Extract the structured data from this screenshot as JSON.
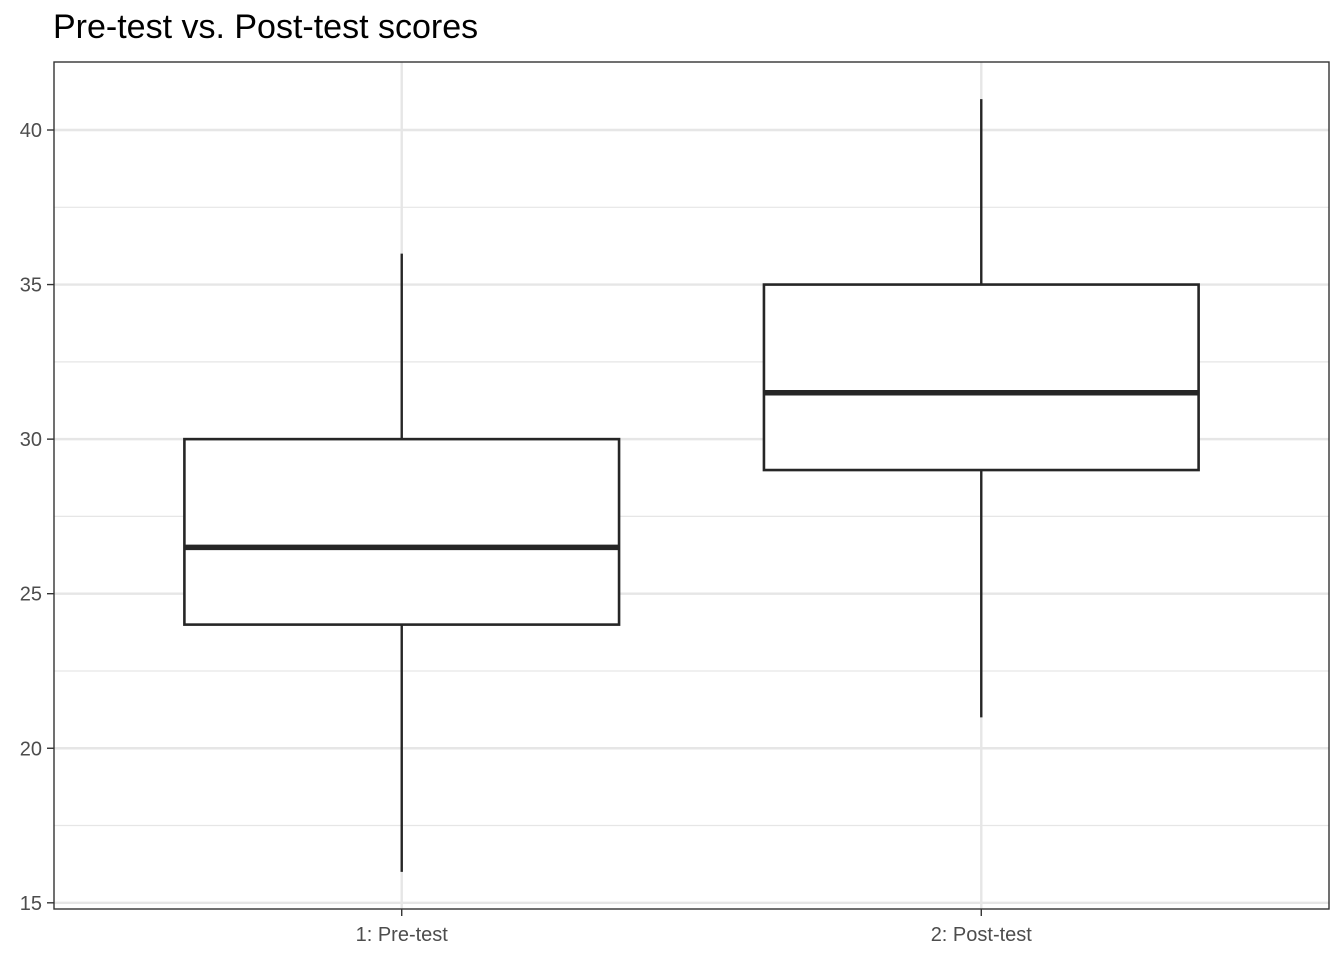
{
  "chart_data": {
    "type": "box",
    "title": "Pre-test vs. Post-test scores",
    "xlabel": "",
    "ylabel": "",
    "categories": [
      "1: Pre-test",
      "2: Post-test"
    ],
    "boxes": [
      {
        "category": "1: Pre-test",
        "whisker_low": 16,
        "q1": 24,
        "median": 26.5,
        "q3": 30,
        "whisker_high": 36
      },
      {
        "category": "2: Post-test",
        "whisker_low": 21,
        "q1": 29,
        "median": 31.5,
        "q3": 35,
        "whisker_high": 41
      }
    ],
    "y_ticks": [
      15,
      20,
      25,
      30,
      35,
      40
    ],
    "y_minor_ticks": [
      17.5,
      22.5,
      27.5,
      32.5,
      37.5
    ],
    "ylim": [
      14.8,
      42.2
    ],
    "grid": true,
    "legend": "none",
    "colors": {
      "box_fill": "#ffffff",
      "box_stroke": "#262626",
      "grid": "#e6e6e6",
      "panel_border": "#333333",
      "tick_label": "#4d4d4d"
    }
  }
}
